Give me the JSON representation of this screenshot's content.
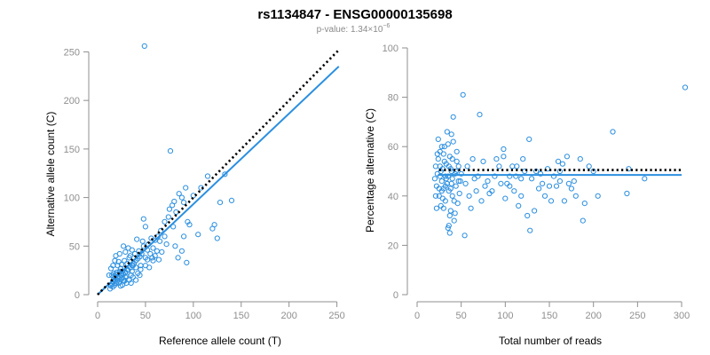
{
  "title": "rs1134847 - ENSG00000135698",
  "subtitle": {
    "prefix": "p-value: 1.34×10",
    "exponent": "−6"
  },
  "colors": {
    "points": "#2b8fe0",
    "fit_line": "#2b8fe0",
    "reference_line": "#000000",
    "axis": "#8f8f8f"
  },
  "chart_data": [
    {
      "type": "scatter",
      "xlabel": "Reference allele count (T)",
      "ylabel": "Alternative allele count (C)",
      "xlim": [
        0,
        255
      ],
      "ylim": [
        0,
        255
      ],
      "xticks": [
        0,
        50,
        100,
        150,
        200,
        250
      ],
      "yticks": [
        0,
        50,
        100,
        150,
        200,
        250
      ],
      "reference_line": {
        "style": "dotted",
        "color": "#000000",
        "from": [
          0,
          0
        ],
        "to": [
          252,
          252
        ]
      },
      "fit_line": {
        "style": "solid",
        "color": "#2b8fe0",
        "from": [
          0,
          0
        ],
        "to": [
          252,
          235
        ]
      },
      "points": [
        [
          13,
          6
        ],
        [
          14,
          9
        ],
        [
          15,
          11
        ],
        [
          16,
          14
        ],
        [
          17,
          16
        ],
        [
          18,
          19
        ],
        [
          19,
          21
        ],
        [
          20,
          23
        ],
        [
          21,
          15
        ],
        [
          22,
          12
        ],
        [
          23,
          18
        ],
        [
          24,
          20
        ],
        [
          25,
          22
        ],
        [
          26,
          24
        ],
        [
          27,
          14
        ],
        [
          16,
          8
        ],
        [
          18,
          10
        ],
        [
          20,
          13
        ],
        [
          22,
          17
        ],
        [
          24,
          9
        ],
        [
          15,
          20
        ],
        [
          17,
          22
        ],
        [
          19,
          12
        ],
        [
          21,
          18
        ],
        [
          23,
          24
        ],
        [
          25,
          16
        ],
        [
          27,
          21
        ],
        [
          29,
          23
        ],
        [
          30,
          19
        ],
        [
          32,
          25
        ],
        [
          34,
          28
        ],
        [
          36,
          30
        ],
        [
          38,
          32
        ],
        [
          40,
          35
        ],
        [
          42,
          37
        ],
        [
          44,
          39
        ],
        [
          30,
          12
        ],
        [
          33,
          15
        ],
        [
          35,
          20
        ],
        [
          37,
          18
        ],
        [
          28,
          35
        ],
        [
          31,
          32
        ],
        [
          34,
          40
        ],
        [
          37,
          30
        ],
        [
          40,
          28
        ],
        [
          43,
          45
        ],
        [
          46,
          42
        ],
        [
          48,
          50
        ],
        [
          50,
          38
        ],
        [
          52,
          46
        ],
        [
          26,
          10
        ],
        [
          28,
          14
        ],
        [
          35,
          12
        ],
        [
          42,
          22
        ],
        [
          45,
          30
        ],
        [
          33,
          38
        ],
        [
          39,
          42
        ],
        [
          31,
          26
        ],
        [
          29,
          18
        ],
        [
          36,
          24
        ],
        [
          47,
          55
        ],
        [
          53,
          52
        ],
        [
          58,
          48
        ],
        [
          60,
          56
        ],
        [
          63,
          60
        ],
        [
          55,
          42
        ],
        [
          57,
          38
        ],
        [
          62,
          45
        ],
        [
          65,
          55
        ],
        [
          50,
          30
        ],
        [
          48,
          78
        ],
        [
          50,
          70
        ],
        [
          56,
          58
        ],
        [
          60,
          40
        ],
        [
          66,
          66
        ],
        [
          70,
          60
        ],
        [
          72,
          52
        ],
        [
          52,
          36
        ],
        [
          44,
          20
        ],
        [
          40,
          15
        ],
        [
          75,
          88
        ],
        [
          78,
          92
        ],
        [
          80,
          96
        ],
        [
          82,
          85
        ],
        [
          85,
          104
        ],
        [
          88,
          100
        ],
        [
          90,
          95
        ],
        [
          92,
          110
        ],
        [
          94,
          75
        ],
        [
          96,
          72
        ],
        [
          70,
          75
        ],
        [
          74,
          80
        ],
        [
          79,
          70
        ],
        [
          81,
          50
        ],
        [
          84,
          38
        ],
        [
          88,
          45
        ],
        [
          90,
          60
        ],
        [
          93,
          33
        ],
        [
          76,
          148
        ],
        [
          100,
          102
        ],
        [
          105,
          62
        ],
        [
          108,
          110
        ],
        [
          115,
          122
        ],
        [
          120,
          68
        ],
        [
          122,
          72
        ],
        [
          125,
          58
        ],
        [
          128,
          95
        ],
        [
          133,
          124
        ],
        [
          140,
          97
        ],
        [
          49,
          256
        ],
        [
          19,
          40
        ],
        [
          22,
          34
        ],
        [
          25,
          31
        ],
        [
          18,
          35
        ],
        [
          21,
          30
        ],
        [
          24,
          27
        ],
        [
          12,
          20
        ],
        [
          14,
          27
        ],
        [
          16,
          30
        ],
        [
          29,
          44
        ],
        [
          32,
          48
        ],
        [
          36,
          46
        ],
        [
          45,
          26
        ],
        [
          41,
          57
        ],
        [
          54,
          28
        ],
        [
          58,
          35
        ],
        [
          64,
          36
        ],
        [
          67,
          44
        ],
        [
          23,
          42
        ],
        [
          27,
          50
        ]
      ]
    },
    {
      "type": "scatter",
      "xlabel": "Total number of reads",
      "ylabel": "Percentage alternative (C)",
      "xlim": [
        0,
        305
      ],
      "ylim": [
        0,
        100
      ],
      "xticks": [
        0,
        50,
        100,
        150,
        200,
        250,
        300
      ],
      "yticks": [
        0,
        20,
        40,
        60,
        80,
        100
      ],
      "reference_line": {
        "style": "dotted",
        "color": "#000000",
        "y": 50.5,
        "from_x": 25,
        "to_x": 300
      },
      "fit_line": {
        "style": "solid",
        "color": "#2b8fe0",
        "y": 48.5,
        "from_x": 25,
        "to_x": 300
      },
      "points": [
        [
          20,
          47
        ],
        [
          21,
          52
        ],
        [
          22,
          44
        ],
        [
          23,
          49
        ],
        [
          24,
          55
        ],
        [
          25,
          40
        ],
        [
          26,
          58
        ],
        [
          27,
          36
        ],
        [
          28,
          46
        ],
        [
          29,
          51
        ],
        [
          30,
          43
        ],
        [
          31,
          60
        ],
        [
          32,
          38
        ],
        [
          33,
          53
        ],
        [
          34,
          45
        ],
        [
          35,
          48
        ],
        [
          36,
          42
        ],
        [
          37,
          56
        ],
        [
          38,
          34
        ],
        [
          39,
          50
        ],
        [
          40,
          47
        ],
        [
          41,
          62
        ],
        [
          42,
          30
        ],
        [
          43,
          49
        ],
        [
          44,
          44
        ],
        [
          45,
          54
        ],
        [
          46,
          37
        ],
        [
          47,
          52
        ],
        [
          48,
          41
        ],
        [
          49,
          46
        ],
        [
          21,
          40
        ],
        [
          23,
          57
        ],
        [
          25,
          43
        ],
        [
          27,
          50
        ],
        [
          29,
          39
        ],
        [
          31,
          54
        ],
        [
          33,
          47
        ],
        [
          35,
          61
        ],
        [
          37,
          32
        ],
        [
          39,
          45
        ],
        [
          22,
          35
        ],
        [
          24,
          63
        ],
        [
          26,
          48
        ],
        [
          28,
          42
        ],
        [
          30,
          57
        ],
        [
          32,
          44
        ],
        [
          34,
          66
        ],
        [
          36,
          28
        ],
        [
          38,
          51
        ],
        [
          40,
          40
        ],
        [
          26,
          52
        ],
        [
          28,
          60
        ],
        [
          30,
          35
        ],
        [
          32,
          48
        ],
        [
          34,
          45
        ],
        [
          36,
          52
        ],
        [
          38,
          43
        ],
        [
          40,
          55
        ],
        [
          42,
          38
        ],
        [
          44,
          50
        ],
        [
          35,
          27
        ],
        [
          37,
          25
        ],
        [
          39,
          65
        ],
        [
          41,
          72
        ],
        [
          43,
          33
        ],
        [
          45,
          58
        ],
        [
          47,
          46
        ],
        [
          50,
          49
        ],
        [
          52,
          81
        ],
        [
          54,
          24
        ],
        [
          55,
          45
        ],
        [
          57,
          52
        ],
        [
          59,
          40
        ],
        [
          61,
          35
        ],
        [
          63,
          55
        ],
        [
          65,
          47
        ],
        [
          67,
          42
        ],
        [
          69,
          48
        ],
        [
          71,
          73
        ],
        [
          73,
          38
        ],
        [
          75,
          54
        ],
        [
          77,
          44
        ],
        [
          80,
          46
        ],
        [
          82,
          41
        ],
        [
          85,
          42
        ],
        [
          88,
          48
        ],
        [
          90,
          55
        ],
        [
          93,
          52
        ],
        [
          95,
          45
        ],
        [
          98,
          59
        ],
        [
          100,
          39
        ],
        [
          102,
          45
        ],
        [
          105,
          44
        ],
        [
          108,
          52
        ],
        [
          110,
          42
        ],
        [
          112,
          48
        ],
        [
          115,
          36
        ],
        [
          118,
          40
        ],
        [
          120,
          55
        ],
        [
          122,
          50
        ],
        [
          125,
          32
        ],
        [
          127,
          63
        ],
        [
          128,
          26
        ],
        [
          130,
          47
        ],
        [
          133,
          34
        ],
        [
          135,
          50
        ],
        [
          138,
          43
        ],
        [
          142,
          45
        ],
        [
          145,
          40
        ],
        [
          148,
          51
        ],
        [
          152,
          38
        ],
        [
          155,
          48
        ],
        [
          158,
          44
        ],
        [
          160,
          54
        ],
        [
          162,
          46
        ],
        [
          165,
          53
        ],
        [
          167,
          38
        ],
        [
          170,
          56
        ],
        [
          172,
          45
        ],
        [
          175,
          43
        ],
        [
          180,
          40
        ],
        [
          185,
          55
        ],
        [
          188,
          30
        ],
        [
          190,
          37
        ],
        [
          195,
          52
        ],
        [
          205,
          40
        ],
        [
          222,
          66
        ],
        [
          238,
          41
        ],
        [
          240,
          51
        ],
        [
          258,
          47
        ],
        [
          304,
          84
        ],
        [
          98,
          56
        ],
        [
          105,
          48
        ],
        [
          113,
          52
        ],
        [
          118,
          47
        ],
        [
          140,
          49
        ],
        [
          150,
          44
        ],
        [
          162,
          50
        ],
        [
          178,
          46
        ],
        [
          200,
          50
        ]
      ]
    }
  ]
}
